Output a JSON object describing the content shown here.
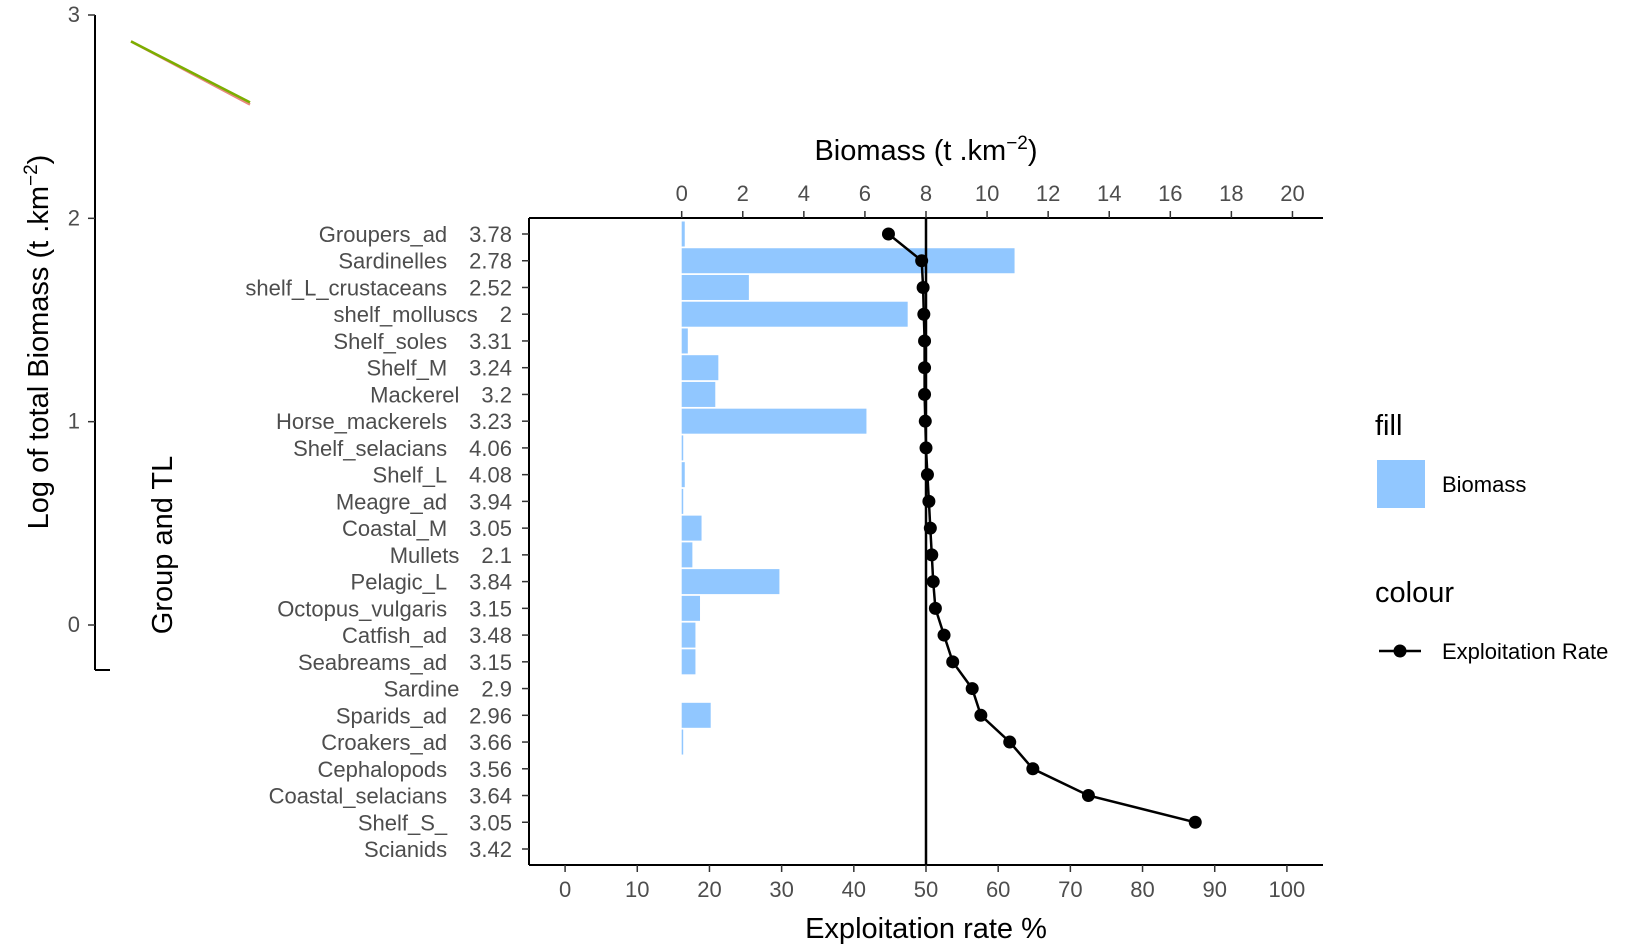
{
  "chart_data": {
    "type": "bar",
    "orientation": "horizontal",
    "groups": [
      "Groupers_ad",
      "Sardinelles",
      "shelf_L_crustaceans",
      "shelf_molluscs",
      "Shelf_soles",
      "Shelf_M",
      "Mackerel",
      "Horse_mackerels",
      "Shelf_selacians",
      "Shelf_L",
      "Meagre_ad",
      "Coastal_M",
      "Mullets",
      "Pelagic_L",
      "Octopus_vulgaris",
      "Catfish_ad",
      "Seabreams_ad",
      "Sardine",
      "Sparids_ad",
      "Croakers_ad",
      "Cephalopods",
      "Coastal_selacians",
      "Shelf_S_",
      "Scianids"
    ],
    "trophic_levels": [
      "3.78",
      "2.78",
      "2.52",
      "2",
      "3.31",
      "3.24",
      "3.2",
      "3.23",
      "4.06",
      "4.08",
      "3.94",
      "3.05",
      "2.1",
      "3.84",
      "3.15",
      "3.48",
      "3.15",
      "2.9",
      "2.96",
      "3.66",
      "3.56",
      "3.64",
      "3.05",
      "3.42"
    ],
    "series": [
      {
        "name": "Biomass",
        "type": "bar",
        "color": "#91c7ff",
        "values": [
          0.1,
          10.9,
          2.2,
          7.4,
          0.2,
          1.2,
          1.1,
          6.05,
          0.05,
          0.1,
          0.05,
          0.65,
          0.35,
          3.2,
          0.6,
          0.45,
          0.45,
          0.0,
          0.95,
          0.02,
          0.0,
          0.0,
          0.0,
          0.0
        ]
      },
      {
        "name": "Exploitation Rate",
        "type": "line",
        "color": "#000000",
        "values": [
          44.8,
          49.4,
          49.6,
          49.7,
          49.8,
          49.8,
          49.8,
          49.9,
          50.0,
          50.2,
          50.4,
          50.6,
          50.8,
          51.0,
          51.3,
          52.5,
          53.7,
          56.4,
          57.6,
          61.6,
          64.8,
          72.5,
          87.3,
          null
        ]
      }
    ],
    "biomass_axis": {
      "title": "Biomass (t .km",
      "title_superscript": "−2",
      "title_end": ")",
      "range": [
        -5.0,
        21.0
      ],
      "ticks": [
        "0",
        "2",
        "4",
        "6",
        "8",
        "10",
        "12",
        "14",
        "16",
        "18",
        "20"
      ]
    },
    "exploitation_axis": {
      "title": "Exploitation rate %",
      "range": [
        -5.0,
        105.0
      ],
      "ticks": [
        "0",
        "10",
        "20",
        "30",
        "40",
        "50",
        "60",
        "70",
        "80",
        "90",
        "100"
      ]
    },
    "reference_line": {
      "exploitation_rate": 50
    },
    "y_axis_title": "Group and TL",
    "left_panel": {
      "ylabel": "Log of total Biomass (t .km",
      "ylabel_superscript": "−2",
      "ylabel_end": ")",
      "ylim": [
        0,
        3
      ],
      "ticks": [
        "0",
        "1",
        "2",
        "3"
      ],
      "lines": [
        {
          "color": "#e8877e",
          "points": [
            [
              0.0,
              2.87
            ],
            [
              1.0,
              2.56
            ]
          ]
        },
        {
          "color": "#7cae00",
          "points": [
            [
              0.0,
              2.87
            ],
            [
              1.0,
              2.57
            ]
          ]
        }
      ]
    },
    "legend": {
      "position": "right",
      "fill_title": "fill",
      "fill_label": "Biomass",
      "colour_title": "colour",
      "colour_label": "Exploitation Rate"
    }
  }
}
